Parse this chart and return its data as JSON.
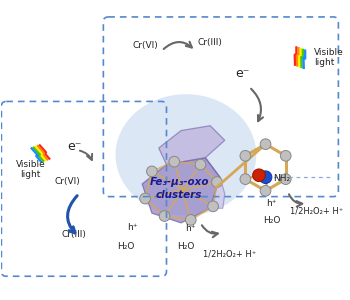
{
  "bg_color": "#ffffff",
  "box_color": "#5588cc",
  "mof_cluster_color": "#9b8dc8",
  "mof_glow_color": "#c5d8f0",
  "bond_color": "#d4a855",
  "atom_gray": "#c0c0c0",
  "atom_blue": "#1a4fcc",
  "atom_red": "#cc2200",
  "arrow_color": "#666666",
  "arrow_color_blue": "#2255aa",
  "text_color": "#222222",
  "fe_text_color": "#1a1a8c",
  "lightning_colors": [
    "#ff2222",
    "#ff8800",
    "#ffee00",
    "#44cc00",
    "#2288ff"
  ],
  "label_fe_line1": "Fe",
  "label_fe_sub": "3",
  "label_fe_line2": "-μ",
  "label_fe_sub2": "3",
  "label_fe_line3": "-oxo",
  "label_fe_full": "Fe₃-μ₃-oxo\nclusters",
  "label_cr6_top": "Cr(VI)",
  "label_cr3_top": "Cr(III)",
  "label_cr6_left": "Cr(VI)",
  "label_cr3_left": "Cr(III)",
  "label_eminus_top": "e⁻",
  "label_eminus_left": "e⁻",
  "label_hplus_bot": "h⁺",
  "label_hplus_right": "h⁺",
  "label_h2o_bot": "H₂O",
  "label_h2o_right": "H₂O",
  "label_prod_bot": "1/2H₂O₂+ H⁺",
  "label_prod_right": "1/2H₂O₂+ H⁺",
  "label_nh2": "NH₂",
  "label_vis_left": "Visible\nlight",
  "label_vis_right": "Visible\nlight"
}
